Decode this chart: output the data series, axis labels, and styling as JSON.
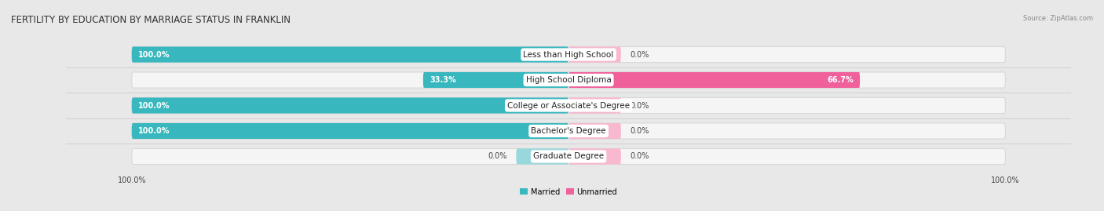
{
  "title": "FERTILITY BY EDUCATION BY MARRIAGE STATUS IN FRANKLIN",
  "source": "Source: ZipAtlas.com",
  "categories": [
    "Less than High School",
    "High School Diploma",
    "College or Associate's Degree",
    "Bachelor's Degree",
    "Graduate Degree"
  ],
  "married": [
    100.0,
    33.3,
    100.0,
    100.0,
    0.0
  ],
  "unmarried": [
    0.0,
    66.7,
    0.0,
    0.0,
    0.0
  ],
  "married_color": "#38b8be",
  "unmarried_color": "#f0609a",
  "married_light": "#98d8dc",
  "unmarried_light": "#f8b8cf",
  "bg_color": "#e8e8e8",
  "bar_bg_color": "#f5f5f5",
  "bar_bg_border": "#d8d8d8",
  "title_fontsize": 8.5,
  "label_fontsize": 7.5,
  "value_fontsize": 7.0,
  "tick_fontsize": 7.0
}
